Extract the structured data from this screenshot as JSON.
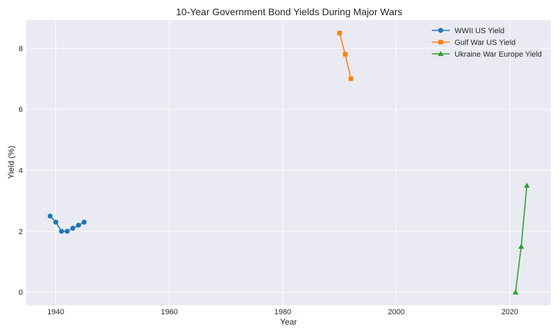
{
  "chart_data": {
    "type": "line",
    "title": "10-Year Government Bond Yields During Major Wars",
    "xlabel": "Year",
    "ylabel": "Yield (%)",
    "xlim": [
      1934.8,
      2027.2
    ],
    "ylim": [
      -0.425,
      8.925
    ],
    "xticks": [
      1940,
      1960,
      1980,
      2000,
      2020
    ],
    "yticks": [
      0,
      2,
      4,
      6,
      8
    ],
    "grid": true,
    "legend_position": "top-right",
    "series": [
      {
        "name": "WWII US Yield",
        "color": "#1f77b4",
        "marker": "circle",
        "x": [
          1939,
          1940,
          1941,
          1942,
          1943,
          1944,
          1945
        ],
        "values": [
          2.5,
          2.3,
          2.0,
          2.0,
          2.1,
          2.2,
          2.3
        ]
      },
      {
        "name": "Gulf War US Yield",
        "color": "#ff7f0e",
        "marker": "square",
        "x": [
          1990,
          1991,
          1992
        ],
        "values": [
          8.5,
          7.8,
          7.0
        ]
      },
      {
        "name": "Ukraine War Europe Yield",
        "color": "#2ca02c",
        "marker": "triangle",
        "x": [
          2021,
          2022,
          2023
        ],
        "values": [
          0.0,
          1.5,
          3.5
        ]
      }
    ]
  }
}
